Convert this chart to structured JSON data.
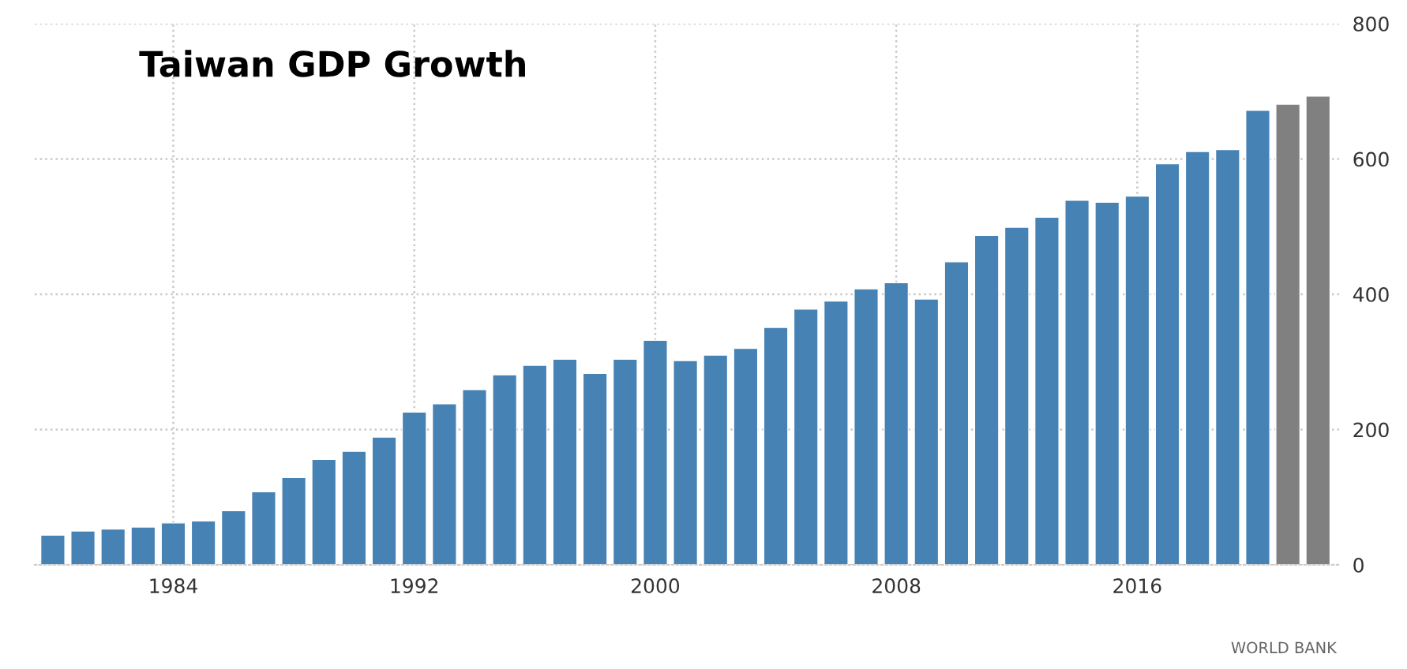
{
  "chart_data": {
    "type": "bar",
    "title": "Taiwan GDP Growth",
    "x": [
      1980,
      1981,
      1982,
      1983,
      1984,
      1985,
      1986,
      1987,
      1988,
      1989,
      1990,
      1991,
      1992,
      1993,
      1994,
      1995,
      1996,
      1997,
      1998,
      1999,
      2000,
      2001,
      2002,
      2003,
      2004,
      2005,
      2006,
      2007,
      2008,
      2009,
      2010,
      2011,
      2012,
      2013,
      2014,
      2015,
      2016,
      2017,
      2018,
      2019,
      2020,
      2021,
      2022
    ],
    "values": [
      44,
      50,
      53,
      56,
      62,
      65,
      80,
      108,
      129,
      156,
      168,
      189,
      226,
      238,
      259,
      281,
      295,
      304,
      283,
      304,
      332,
      302,
      310,
      320,
      351,
      378,
      390,
      408,
      417,
      393,
      448,
      487,
      499,
      514,
      539,
      536,
      545,
      593,
      611,
      614,
      672,
      681,
      693
    ],
    "colors": [
      "#4682b4",
      "#4682b4",
      "#4682b4",
      "#4682b4",
      "#4682b4",
      "#4682b4",
      "#4682b4",
      "#4682b4",
      "#4682b4",
      "#4682b4",
      "#4682b4",
      "#4682b4",
      "#4682b4",
      "#4682b4",
      "#4682b4",
      "#4682b4",
      "#4682b4",
      "#4682b4",
      "#4682b4",
      "#4682b4",
      "#4682b4",
      "#4682b4",
      "#4682b4",
      "#4682b4",
      "#4682b4",
      "#4682b4",
      "#4682b4",
      "#4682b4",
      "#4682b4",
      "#4682b4",
      "#4682b4",
      "#4682b4",
      "#4682b4",
      "#4682b4",
      "#4682b4",
      "#4682b4",
      "#4682b4",
      "#4682b4",
      "#4682b4",
      "#4682b4",
      "#4682b4",
      "#808080",
      "#808080"
    ],
    "xlim": [
      1979.4,
      2022.7
    ],
    "xticks": [
      1984,
      1992,
      2000,
      2008,
      2016
    ],
    "ylim": [
      0,
      800
    ],
    "yticks": [
      0,
      200,
      400,
      600,
      800
    ],
    "grid": true,
    "annotations": [
      "WORLD BANK"
    ]
  }
}
